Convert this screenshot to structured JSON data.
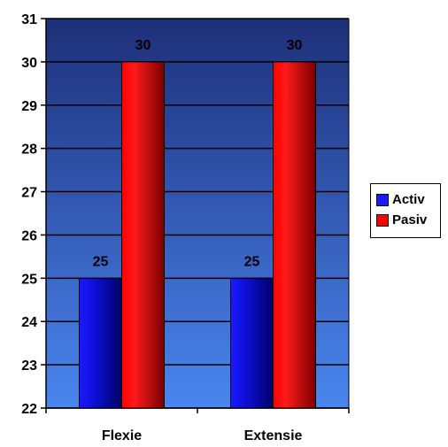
{
  "chart_data": {
    "type": "bar",
    "categories": [
      "Flexie",
      "Extensie"
    ],
    "series": [
      {
        "name": "Activ",
        "values": [
          25,
          25
        ],
        "color": "#1a1aff"
      },
      {
        "name": "Pasiv",
        "values": [
          30,
          30
        ],
        "color": "#ff0000"
      }
    ],
    "title": "",
    "xlabel": "",
    "ylabel": "",
    "ylim": [
      22,
      31
    ],
    "yticks": [
      22,
      23,
      24,
      25,
      26,
      27,
      28,
      29,
      30,
      31
    ],
    "grid": true,
    "legend": "right",
    "data_labels": true,
    "background_gradient": [
      "#1e2f78",
      "#4a86f0"
    ]
  }
}
